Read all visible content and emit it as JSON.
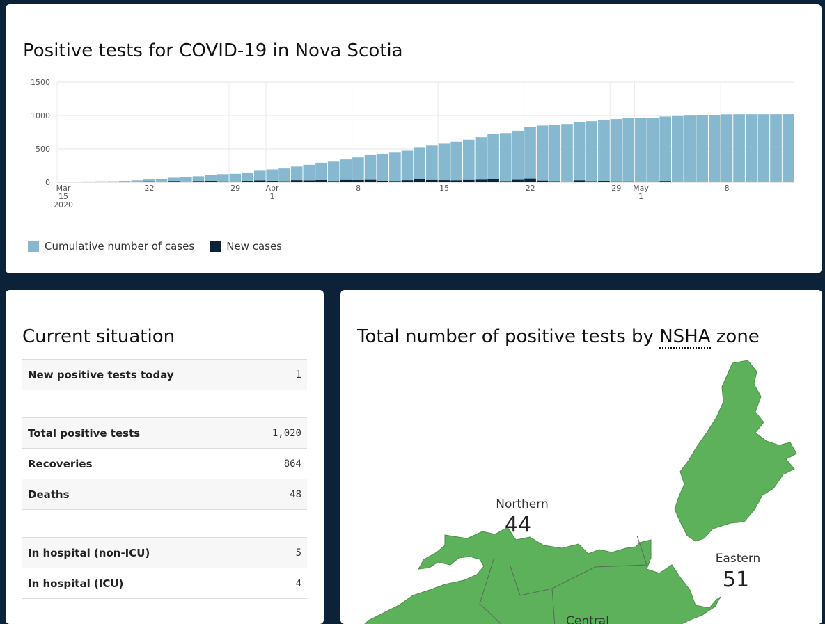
{
  "chart_card": {
    "title": "Positive tests for COVID-19 in Nova Scotia",
    "legend": {
      "cumulative": "Cumulative number of cases",
      "new": "New cases"
    }
  },
  "chart_data": {
    "type": "bar",
    "title": "Positive tests for COVID-19 in Nova Scotia",
    "xlabel": "",
    "ylabel": "",
    "ylim": [
      0,
      1500
    ],
    "yticks": [
      0,
      500,
      1000,
      1500
    ],
    "x_start": "2020-03-15",
    "x_end": "2020-05-13",
    "x_ticks": [
      {
        "date": "2020-03-15",
        "lines": [
          "Mar",
          "15",
          "2020"
        ]
      },
      {
        "date": "2020-03-22",
        "lines": [
          "22"
        ]
      },
      {
        "date": "2020-03-29",
        "lines": [
          "29"
        ]
      },
      {
        "date": "2020-04-01",
        "lines": [
          "Apr",
          "1"
        ]
      },
      {
        "date": "2020-04-08",
        "lines": [
          "8"
        ]
      },
      {
        "date": "2020-04-15",
        "lines": [
          "15"
        ]
      },
      {
        "date": "2020-04-22",
        "lines": [
          "22"
        ]
      },
      {
        "date": "2020-04-29",
        "lines": [
          "29"
        ]
      },
      {
        "date": "2020-05-01",
        "lines": [
          "May",
          "1"
        ]
      },
      {
        "date": "2020-05-08",
        "lines": [
          "8"
        ]
      }
    ],
    "grid": true,
    "legend_position": "bottom-left",
    "colors": {
      "cumulative": "#86b8cf",
      "new": "#0b2239"
    },
    "series": [
      {
        "name": "Cumulative number of cases",
        "type": "bar",
        "x": [
          "2020-03-15",
          "2020-03-16",
          "2020-03-17",
          "2020-03-18",
          "2020-03-19",
          "2020-03-20",
          "2020-03-21",
          "2020-03-22",
          "2020-03-23",
          "2020-03-24",
          "2020-03-25",
          "2020-03-26",
          "2020-03-27",
          "2020-03-28",
          "2020-03-29",
          "2020-03-30",
          "2020-03-31",
          "2020-04-01",
          "2020-04-02",
          "2020-04-03",
          "2020-04-04",
          "2020-04-05",
          "2020-04-06",
          "2020-04-07",
          "2020-04-08",
          "2020-04-09",
          "2020-04-10",
          "2020-04-11",
          "2020-04-12",
          "2020-04-13",
          "2020-04-14",
          "2020-04-15",
          "2020-04-16",
          "2020-04-17",
          "2020-04-18",
          "2020-04-19",
          "2020-04-20",
          "2020-04-21",
          "2020-04-22",
          "2020-04-23",
          "2020-04-24",
          "2020-04-25",
          "2020-04-26",
          "2020-04-27",
          "2020-04-28",
          "2020-04-29",
          "2020-04-30",
          "2020-05-01",
          "2020-05-02",
          "2020-05-03",
          "2020-05-04",
          "2020-05-05",
          "2020-05-06",
          "2020-05-07",
          "2020-05-08",
          "2020-05-09",
          "2020-05-10",
          "2020-05-11",
          "2020-05-12",
          "2020-05-13"
        ],
        "values": [
          5,
          7,
          12,
          14,
          15,
          21,
          28,
          41,
          51,
          68,
          73,
          90,
          110,
          122,
          127,
          147,
          173,
          193,
          207,
          236,
          262,
          293,
          310,
          342,
          373,
          407,
          428,
          445,
          474,
          517,
          549,
          579,
          606,
          638,
          675,
          721,
          737,
          772,
          827,
          850,
          865,
          873,
          900,
          915,
          935,
          947,
          959,
          963,
          967,
          985,
          991,
          998,
          1007,
          1008,
          1018,
          1019,
          1019,
          1019,
          1019,
          1020
        ]
      },
      {
        "name": "New cases",
        "type": "bar",
        "x": [
          "2020-03-15",
          "2020-03-16",
          "2020-03-17",
          "2020-03-18",
          "2020-03-19",
          "2020-03-20",
          "2020-03-21",
          "2020-03-22",
          "2020-03-23",
          "2020-03-24",
          "2020-03-25",
          "2020-03-26",
          "2020-03-27",
          "2020-03-28",
          "2020-03-29",
          "2020-03-30",
          "2020-03-31",
          "2020-04-01",
          "2020-04-02",
          "2020-04-03",
          "2020-04-04",
          "2020-04-05",
          "2020-04-06",
          "2020-04-07",
          "2020-04-08",
          "2020-04-09",
          "2020-04-10",
          "2020-04-11",
          "2020-04-12",
          "2020-04-13",
          "2020-04-14",
          "2020-04-15",
          "2020-04-16",
          "2020-04-17",
          "2020-04-18",
          "2020-04-19",
          "2020-04-20",
          "2020-04-21",
          "2020-04-22",
          "2020-04-23",
          "2020-04-24",
          "2020-04-25",
          "2020-04-26",
          "2020-04-27",
          "2020-04-28",
          "2020-04-29",
          "2020-04-30",
          "2020-05-01",
          "2020-05-02",
          "2020-05-03",
          "2020-05-04",
          "2020-05-05",
          "2020-05-06",
          "2020-05-07",
          "2020-05-08",
          "2020-05-09",
          "2020-05-10",
          "2020-05-11",
          "2020-05-12",
          "2020-05-13"
        ],
        "values": [
          5,
          2,
          5,
          2,
          1,
          6,
          7,
          13,
          10,
          17,
          5,
          17,
          20,
          12,
          5,
          20,
          26,
          20,
          14,
          29,
          26,
          31,
          17,
          32,
          31,
          34,
          21,
          17,
          29,
          43,
          32,
          30,
          27,
          32,
          37,
          46,
          16,
          35,
          55,
          23,
          15,
          8,
          27,
          15,
          20,
          12,
          12,
          4,
          4,
          18,
          6,
          7,
          9,
          1,
          10,
          1,
          0,
          0,
          0,
          1
        ]
      }
    ]
  },
  "situation_card": {
    "title": "Current situation",
    "rows": [
      {
        "label": "New positive tests today",
        "value": "1"
      },
      {
        "label": "Total positive tests",
        "value": "1,020"
      },
      {
        "label": "Recoveries",
        "value": "864"
      },
      {
        "label": "Deaths",
        "value": "48"
      },
      {
        "label": "In hospital (non-ICU)",
        "value": "5"
      },
      {
        "label": "In hospital (ICU)",
        "value": "4"
      }
    ]
  },
  "map_card": {
    "title_before": "Total number of positive tests by ",
    "title_abbr": "NSHA",
    "title_after": " zone",
    "fill_color": "#5db15a",
    "zones": [
      {
        "name": "Northern",
        "count": "44"
      },
      {
        "name": "Eastern",
        "count": "51"
      },
      {
        "name": "Central",
        "count": ""
      }
    ]
  }
}
